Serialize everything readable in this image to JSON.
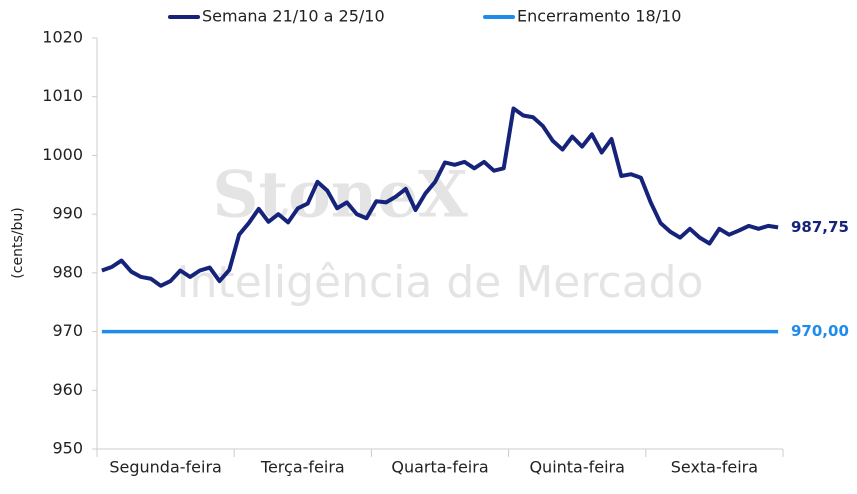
{
  "chart_data": {
    "type": "line",
    "y_label": "(cents/bu)",
    "watermark": [
      "StoneX",
      "Inteligência de Mercado"
    ],
    "categories": [
      null,
      null,
      null,
      null,
      null,
      null,
      null,
      "Segunda-feira",
      null,
      null,
      null,
      null,
      null,
      null,
      null,
      null,
      null,
      null,
      null,
      null,
      null,
      "Terça-feira",
      null,
      null,
      null,
      null,
      null,
      null,
      null,
      null,
      null,
      null,
      null,
      null,
      null,
      "Quarta-feira",
      null,
      null,
      null,
      null,
      null,
      null,
      null,
      null,
      null,
      null,
      null,
      null,
      null,
      "Quinta-feira",
      null,
      null,
      null,
      null,
      null,
      null,
      null,
      null,
      null,
      null,
      null,
      null,
      null,
      "Sexta-feira",
      null,
      null,
      null,
      null,
      null,
      null
    ],
    "series": [
      {
        "name": "Semana 21/10 a 25/10",
        "color": "#16237a",
        "values": [
          980.4,
          981.0,
          982.1,
          980.2,
          979.3,
          979.0,
          977.8,
          978.6,
          980.4,
          979.3,
          980.4,
          980.9,
          978.6,
          980.5,
          986.5,
          988.5,
          990.9,
          988.7,
          990.0,
          988.6,
          991.0,
          991.8,
          995.5,
          994.0,
          991.0,
          992.0,
          990.0,
          989.3,
          992.2,
          992.0,
          993.0,
          994.3,
          990.7,
          993.5,
          995.5,
          998.8,
          998.4,
          998.9,
          997.8,
          998.9,
          997.4,
          997.8,
          1008.0,
          1006.8,
          1006.5,
          1005.0,
          1002.5,
          1001.0,
          1003.2,
          1001.5,
          1003.6,
          1000.5,
          1002.8,
          996.5,
          996.8,
          996.2,
          992.0,
          988.5,
          987.0,
          986.0,
          987.5,
          986.0,
          985.0,
          987.5,
          986.5,
          987.2,
          988.0,
          987.5,
          988.0,
          987.75
        ],
        "value_labels": [
          null,
          null,
          null,
          null,
          null,
          null,
          null,
          null,
          null,
          null,
          null,
          null,
          null,
          null,
          null,
          null,
          null,
          null,
          null,
          null,
          null,
          null,
          null,
          null,
          null,
          null,
          null,
          null,
          null,
          null,
          null,
          null,
          null,
          null,
          null,
          null,
          null,
          null,
          null,
          null,
          null,
          null,
          null,
          null,
          null,
          null,
          null,
          null,
          null,
          null,
          null,
          null,
          null,
          null,
          null,
          null,
          null,
          null,
          null,
          null,
          null,
          null,
          null,
          null,
          null,
          null,
          null,
          null,
          null,
          "987,75"
        ]
      },
      {
        "name": "Encerramento 18/10",
        "color": "#1f8ceb",
        "values": [
          970,
          970,
          970,
          970,
          970,
          970,
          970,
          970,
          970,
          970,
          970,
          970,
          970,
          970,
          970,
          970,
          970,
          970,
          970,
          970,
          970,
          970,
          970,
          970,
          970,
          970,
          970,
          970,
          970,
          970,
          970,
          970,
          970,
          970,
          970,
          970,
          970,
          970,
          970,
          970,
          970,
          970,
          970,
          970,
          970,
          970,
          970,
          970,
          970,
          970,
          970,
          970,
          970,
          970,
          970,
          970,
          970,
          970,
          970,
          970,
          970,
          970,
          970,
          970,
          970,
          970,
          970,
          970,
          970,
          970
        ],
        "value_labels": [
          null,
          null,
          null,
          null,
          null,
          null,
          null,
          null,
          null,
          null,
          null,
          null,
          null,
          null,
          null,
          null,
          null,
          null,
          null,
          null,
          null,
          null,
          null,
          null,
          null,
          null,
          null,
          null,
          null,
          null,
          null,
          null,
          null,
          null,
          null,
          null,
          null,
          null,
          null,
          null,
          null,
          null,
          null,
          null,
          null,
          null,
          null,
          null,
          null,
          null,
          null,
          null,
          null,
          null,
          null,
          null,
          null,
          null,
          null,
          null,
          null,
          null,
          null,
          null,
          null,
          null,
          null,
          null,
          null,
          "970,00"
        ]
      }
    ],
    "ylim": [
      950,
      1020
    ],
    "yticks": [
      950,
      960,
      970,
      980,
      990,
      1000,
      1010,
      1020
    ],
    "grid": false,
    "legend": "top"
  }
}
